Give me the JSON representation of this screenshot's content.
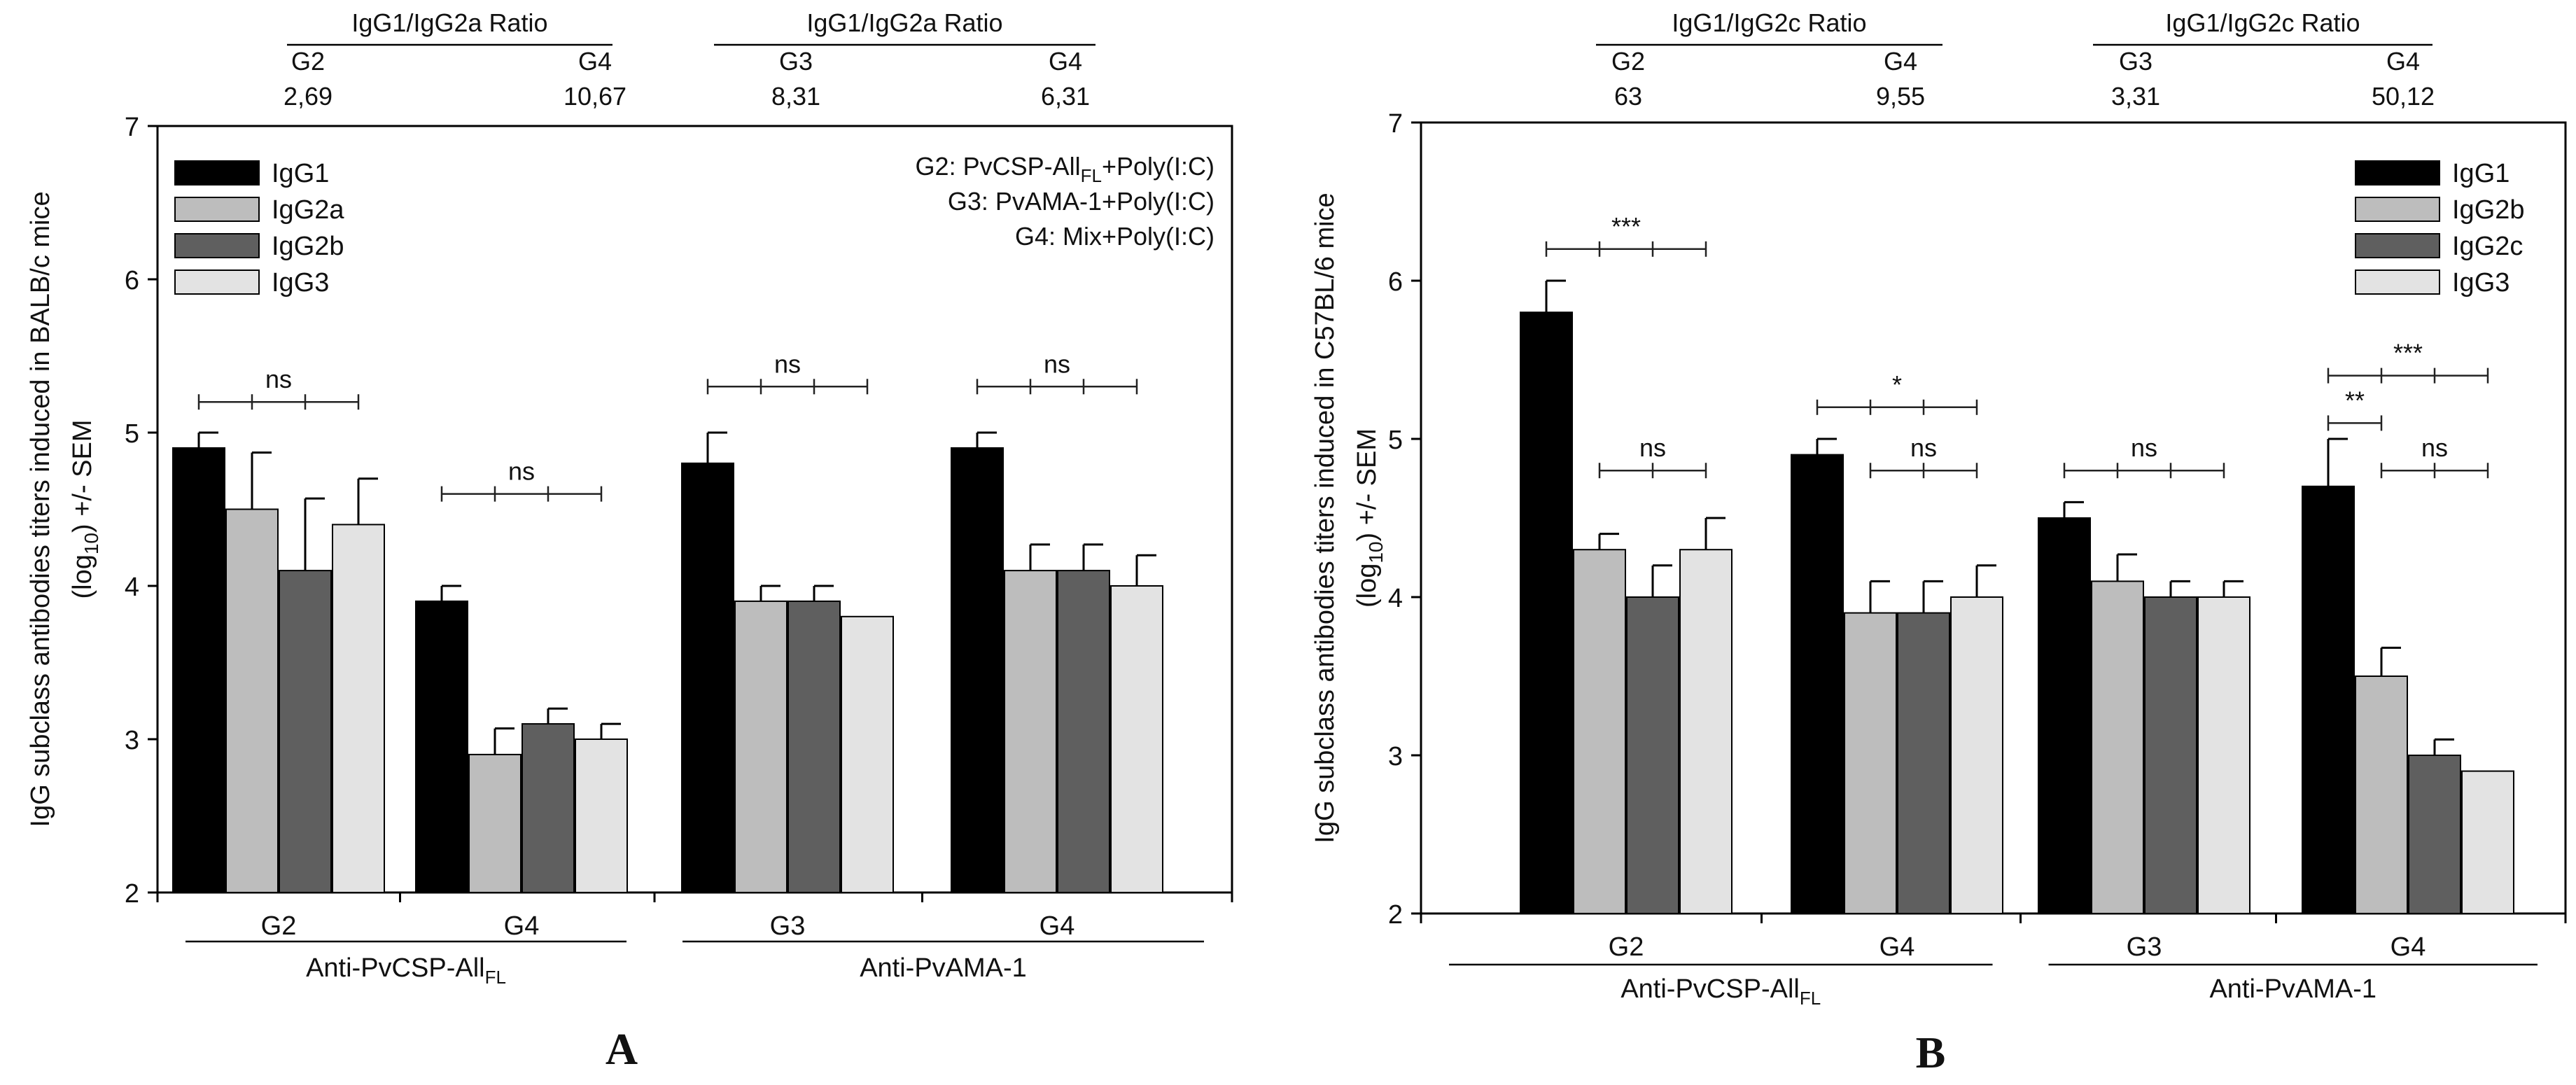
{
  "chart_data": [
    {
      "type": "bar",
      "panel_label": "A",
      "ylabel_main": "IgG subclass antibodies titers induced in BALB/c mice",
      "ylabel_pre": "(log",
      "ylabel_sub": "10",
      "ylabel_post": ") +/- SEM",
      "ylim": [
        2,
        7
      ],
      "yticks": [
        "2",
        "3",
        "4",
        "5",
        "6",
        "7"
      ],
      "categories": [
        "G2",
        "G4",
        "G3",
        "G4"
      ],
      "groups": [
        {
          "label": "Anti-PvCSP-All",
          "sub": "FL",
          "start": 0,
          "end": 1
        },
        {
          "label": "Anti-PvAMA-1",
          "sub": "",
          "start": 2,
          "end": 3
        }
      ],
      "series": [
        {
          "name": "IgG1",
          "color": "#000000",
          "values": [
            4.9,
            3.9,
            4.8,
            4.9
          ],
          "errors": [
            0.1,
            0.1,
            0.2,
            0.1
          ]
        },
        {
          "name": "IgG2a",
          "color": "#bdbdbd",
          "values": [
            4.5,
            2.9,
            3.9,
            4.1
          ],
          "errors": [
            0.37,
            0.17,
            0.1,
            0.17
          ]
        },
        {
          "name": "IgG2b",
          "color": "#5f5f5f",
          "values": [
            4.1,
            3.1,
            3.9,
            4.1
          ],
          "errors": [
            0.47,
            0.1,
            0.1,
            0.17
          ]
        },
        {
          "name": "IgG3",
          "color": "#e3e3e3",
          "values": [
            4.4,
            3.0,
            3.8,
            4.0
          ],
          "errors": [
            0.3,
            0.1,
            0.0,
            0.2
          ]
        }
      ],
      "legend_position": "top-left",
      "annotations_lines": [
        {
          "pre": "G2: PvCSP-All",
          "sub": "FL",
          "post": "+Poly(I:C)"
        },
        {
          "pre": "G3: PvAMA-1+Poly(I:C)",
          "sub": "",
          "post": ""
        },
        {
          "pre": "G4: Mix+Poly(I:C)",
          "sub": "",
          "post": ""
        }
      ],
      "significance": [
        {
          "category": 0,
          "from_series": 0,
          "to_series": 3,
          "y": 5.2,
          "label": "ns"
        },
        {
          "category": 1,
          "from_series": 0,
          "to_series": 3,
          "y": 4.6,
          "label": "ns"
        },
        {
          "category": 2,
          "from_series": 0,
          "to_series": 3,
          "y": 5.3,
          "label": "ns"
        },
        {
          "category": 3,
          "from_series": 0,
          "to_series": 3,
          "y": 5.3,
          "label": "ns"
        }
      ],
      "ratio_headers": [
        {
          "title": "IgG1/IgG2a Ratio",
          "items": [
            {
              "group": "G2",
              "value": "2,69",
              "category": 0
            },
            {
              "group": "G4",
              "value": "10,67",
              "category": 1
            }
          ]
        },
        {
          "title": "IgG1/IgG2a Ratio",
          "items": [
            {
              "group": "G3",
              "value": "8,31",
              "category": 2
            },
            {
              "group": "G4",
              "value": "6,31",
              "category": 3
            }
          ]
        }
      ]
    },
    {
      "type": "bar",
      "panel_label": "B",
      "ylabel_main": "IgG subclass antibodies titers induced in C57BL/6 mice",
      "ylabel_pre": "(log",
      "ylabel_sub": "10",
      "ylabel_post": ") +/- SEM",
      "ylim": [
        2,
        7
      ],
      "yticks": [
        "2",
        "3",
        "4",
        "5",
        "6",
        "7"
      ],
      "categories": [
        "G2",
        "G4",
        "G3",
        "G4"
      ],
      "groups": [
        {
          "label": "Anti-PvCSP-All",
          "sub": "FL",
          "start": 0,
          "end": 1
        },
        {
          "label": "Anti-PvAMA-1",
          "sub": "",
          "start": 2,
          "end": 3
        }
      ],
      "series": [
        {
          "name": "IgG1",
          "color": "#000000",
          "values": [
            5.8,
            4.9,
            4.5,
            4.7
          ],
          "errors": [
            0.2,
            0.1,
            0.1,
            0.3
          ]
        },
        {
          "name": "IgG2b",
          "color": "#bdbdbd",
          "values": [
            4.3,
            3.9,
            4.1,
            3.5
          ],
          "errors": [
            0.1,
            0.2,
            0.17,
            0.18
          ]
        },
        {
          "name": "IgG2c",
          "color": "#5f5f5f",
          "values": [
            4.0,
            3.9,
            4.0,
            3.0
          ],
          "errors": [
            0.2,
            0.2,
            0.1,
            0.1
          ]
        },
        {
          "name": "IgG3",
          "color": "#e3e3e3",
          "values": [
            4.3,
            4.0,
            4.0,
            2.9
          ],
          "errors": [
            0.2,
            0.2,
            0.1,
            0.0
          ]
        }
      ],
      "legend_position": "top-right",
      "significance": [
        {
          "category": 0,
          "from_series": 0,
          "to_series": 3,
          "y": 6.2,
          "label": "***"
        },
        {
          "category": 0,
          "from_series": 1,
          "to_series": 3,
          "y": 4.8,
          "label": "ns"
        },
        {
          "category": 1,
          "from_series": 0,
          "to_series": 3,
          "y": 5.2,
          "label": "*"
        },
        {
          "category": 1,
          "from_series": 1,
          "to_series": 3,
          "y": 4.8,
          "label": "ns"
        },
        {
          "category": 2,
          "from_series": 0,
          "to_series": 3,
          "y": 4.8,
          "label": "ns"
        },
        {
          "category": 3,
          "from_series": 0,
          "to_series": 1,
          "y": 5.1,
          "label": "**"
        },
        {
          "category": 3,
          "from_series": 0,
          "to_series": 3,
          "y": 5.4,
          "label": "***"
        },
        {
          "category": 3,
          "from_series": 1,
          "to_series": 3,
          "y": 4.8,
          "label": "ns"
        }
      ],
      "ratio_headers": [
        {
          "title": "IgG1/IgG2c Ratio",
          "items": [
            {
              "group": "G2",
              "value": "63",
              "category": 0
            },
            {
              "group": "G4",
              "value": "9,55",
              "category": 1
            }
          ]
        },
        {
          "title": "IgG1/IgG2c Ratio",
          "items": [
            {
              "group": "G3",
              "value": "3,31",
              "category": 2
            },
            {
              "group": "G4",
              "value": "50,12",
              "category": 3
            }
          ]
        }
      ]
    }
  ]
}
